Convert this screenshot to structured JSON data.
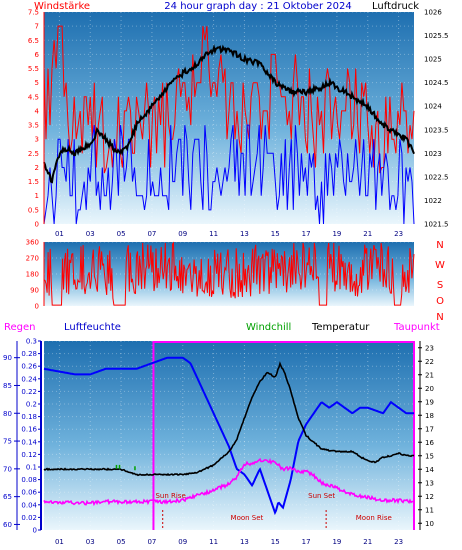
{
  "header": {
    "title": "24 hour graph day : 21 Oktober 2024",
    "left_label": "Windstärke",
    "right_label": "Luftdruck"
  },
  "colors": {
    "wind_gust": "#ff0000",
    "wind_avg": "#0000ff",
    "pressure": "#000000",
    "humidity": "#0000ff",
    "temperature": "#000000",
    "dewpoint": "#ff00ff",
    "windchill": "#00a000",
    "rain_axis": "#0000cc",
    "rain_bar": "#ff00ff",
    "background_top": "#1c6fb0",
    "background_bottom": "#e8f4fb"
  },
  "x_ticks": [
    "01",
    "03",
    "05",
    "07",
    "09",
    "11",
    "13",
    "15",
    "17",
    "19",
    "21",
    "23"
  ],
  "panel1": {
    "wind_ticks": [
      "0",
      "0.5",
      "1",
      "1.5",
      "2",
      "2.5",
      "3",
      "3.5",
      "4",
      "4.5",
      "5",
      "5.5",
      "6",
      "6.5",
      "7",
      "7.5"
    ],
    "pressure_ticks": [
      "1021.5",
      "1022",
      "1022.5",
      "1023",
      "1023.5",
      "1024",
      "1024.5",
      "1025",
      "1025.5",
      "1026"
    ]
  },
  "panel2": {
    "dir_ticks": [
      "0",
      "90",
      "180",
      "270",
      "360"
    ],
    "compass": [
      "N",
      "W",
      "S",
      "O",
      "N"
    ]
  },
  "panel3": {
    "legend": {
      "regen": "Regen",
      "luftfeuchte": "Luftfeuchte",
      "windchill": "Windchill",
      "temperatur": "Temperatur",
      "taupunkt": "Taupunkt"
    },
    "humidity_ticks": [
      "60",
      "65",
      "70",
      "75",
      "80",
      "85",
      "90"
    ],
    "rain_ticks": [
      "0",
      "0.02",
      "0.04",
      "0.06",
      "0.08",
      "0.1",
      "0.12",
      "0.14",
      "0.16",
      "0.18",
      "0.2",
      "0.22",
      "0.24",
      "0.26",
      "0.28",
      "0.3"
    ],
    "temp_ticks": [
      "10",
      "11",
      "12",
      "13",
      "14",
      "15",
      "16",
      "17",
      "18",
      "19",
      "20",
      "21",
      "22",
      "23"
    ],
    "annotations": {
      "sun_rise": "Sun Rise",
      "sun_set": "Sun Set",
      "moon_set": "Moon Set",
      "moon_rise": "Moon Rise"
    }
  },
  "chart_data": [
    {
      "type": "line",
      "title": "24 hour graph day : 21 Oktober 2024",
      "x_unit": "hour",
      "y_left_label": "Windstärke",
      "y_right_label": "Luftdruck",
      "ylim_left": [
        0,
        7.5
      ],
      "ylim_right": [
        1021.5,
        1026
      ],
      "series": [
        {
          "name": "Luftdruck",
          "axis": "right",
          "x": [
            0,
            0.5,
            1,
            1.5,
            2,
            3,
            3.5,
            4,
            4.5,
            5,
            5.5,
            6,
            7,
            8,
            9,
            10,
            10.5,
            11,
            11.5,
            12,
            12.5,
            13,
            14,
            15,
            15.5,
            16,
            17,
            18,
            18.5,
            19,
            20,
            21,
            22,
            22.5,
            23,
            23.5,
            24
          ],
          "y": [
            1022.8,
            1022.4,
            1023.0,
            1023.1,
            1023.0,
            1023.2,
            1023.5,
            1023.3,
            1023.1,
            1023.0,
            1023.2,
            1023.6,
            1024.0,
            1024.4,
            1024.7,
            1024.9,
            1025.1,
            1025.2,
            1025.2,
            1025.2,
            1025.1,
            1025.0,
            1024.9,
            1024.5,
            1024.4,
            1024.3,
            1024.3,
            1024.4,
            1024.5,
            1024.4,
            1024.2,
            1024.0,
            1023.6,
            1023.5,
            1023.4,
            1023.3,
            1023.0
          ]
        },
        {
          "name": "Windstärke gust",
          "axis": "left",
          "x": [
            0,
            1,
            2,
            3,
            4,
            5,
            6,
            7,
            8,
            9,
            10,
            11,
            12,
            13,
            14,
            15,
            16,
            17,
            18,
            19,
            20,
            21,
            22,
            23,
            24
          ],
          "y": [
            5.5,
            7.5,
            4.5,
            5.5,
            4.5,
            5.0,
            5.5,
            4.5,
            5.0,
            6.0,
            7.0,
            7.5,
            6.0,
            5.5,
            5.5,
            6.5,
            6.0,
            5.5,
            5.0,
            6.0,
            5.5,
            5.0,
            4.5,
            5.5,
            4.5
          ]
        },
        {
          "name": "Windstärke avg",
          "axis": "left",
          "x": [
            0,
            1,
            2,
            3,
            4,
            5,
            6,
            7,
            8,
            9,
            10,
            11,
            12,
            13,
            14,
            15,
            16,
            17,
            18,
            19,
            20,
            21,
            22,
            23,
            24
          ],
          "y": [
            2.5,
            3.5,
            3.0,
            3.5,
            3.0,
            3.5,
            3.5,
            3.0,
            3.5,
            3.5,
            3.5,
            3.5,
            3.5,
            3.5,
            3.5,
            3.5,
            3.5,
            3.5,
            3.0,
            3.5,
            3.5,
            3.0,
            3.0,
            3.5,
            2.5
          ]
        }
      ]
    },
    {
      "type": "line",
      "x_unit": "hour",
      "ylim": [
        0,
        360
      ],
      "series": [
        {
          "name": "Windrichtung",
          "x": [
            0,
            2,
            4,
            6,
            8,
            10,
            12,
            14,
            16,
            18,
            20,
            22,
            24
          ],
          "y": [
            200,
            220,
            180,
            210,
            240,
            200,
            190,
            200,
            210,
            230,
            200,
            220,
            210
          ]
        }
      ]
    },
    {
      "type": "line",
      "x_unit": "hour",
      "ylim_humidity": [
        59,
        93
      ],
      "ylim_rain": [
        0,
        0.3
      ],
      "ylim_temp": [
        9.5,
        23.5
      ],
      "series": [
        {
          "name": "Luftfeuchte",
          "axis": "humidity",
          "x": [
            0,
            2,
            3,
            4,
            5,
            6,
            7,
            7.5,
            8,
            9,
            9.5,
            10,
            11,
            12,
            12.5,
            13,
            13.5,
            14,
            14.5,
            15,
            15.2,
            15.5,
            16,
            16.5,
            17,
            18,
            18.5,
            19,
            19.5,
            20,
            20.5,
            21,
            22,
            22.5,
            23,
            23.5,
            24
          ],
          "y": [
            88,
            87,
            87,
            88,
            88,
            88,
            89,
            89.5,
            90,
            90,
            89,
            86,
            80,
            74,
            70,
            69,
            67,
            70,
            66,
            62,
            64,
            63,
            68,
            75,
            78,
            82,
            81,
            82,
            81,
            80,
            81,
            81,
            80,
            82,
            81,
            80,
            80
          ]
        },
        {
          "name": "Temperatur",
          "axis": "temp",
          "x": [
            0,
            2,
            4,
            5,
            6,
            7,
            7.5,
            8,
            9,
            10,
            11,
            12,
            12.5,
            13,
            13.5,
            14,
            14.5,
            15,
            15.3,
            15.6,
            16,
            16.5,
            17,
            18,
            19,
            20,
            21,
            21.5,
            22,
            22.5,
            23,
            23.5,
            24
          ],
          "y": [
            14.0,
            14.0,
            14.0,
            14.0,
            13.6,
            13.6,
            13.6,
            13.6,
            13.6,
            13.8,
            14.3,
            15.3,
            16.2,
            17.8,
            19.3,
            20.5,
            21.2,
            20.8,
            21.8,
            21.2,
            19.8,
            17.8,
            16.5,
            15.5,
            15.3,
            15.3,
            14.6,
            14.5,
            14.9,
            15.0,
            15.2,
            15.0,
            15.0
          ]
        },
        {
          "name": "Taupunkt",
          "axis": "temp",
          "x": [
            0,
            2,
            3,
            4,
            5,
            6,
            7,
            7.5,
            8,
            9,
            10,
            11,
            11.5,
            12,
            12.5,
            13,
            13.5,
            14,
            14.5,
            15,
            15.5,
            16,
            16.5,
            17,
            17.5,
            18,
            19,
            20,
            21,
            22,
            23,
            24
          ],
          "y": [
            11.6,
            11.5,
            11.5,
            11.6,
            11.6,
            11.6,
            11.6,
            11.6,
            11.6,
            11.7,
            12.1,
            12.4,
            12.7,
            12.9,
            13.4,
            14.4,
            14.4,
            14.7,
            14.6,
            14.5,
            14.0,
            14.1,
            13.8,
            13.9,
            13.5,
            13.0,
            12.6,
            12.1,
            11.9,
            11.7,
            11.7,
            11.6
          ]
        }
      ],
      "sun_rise_hour": 7.1,
      "sun_set_hour": 18.3,
      "moon_set_hour": 9.5,
      "moon_rise_hour": 21.0
    }
  ]
}
